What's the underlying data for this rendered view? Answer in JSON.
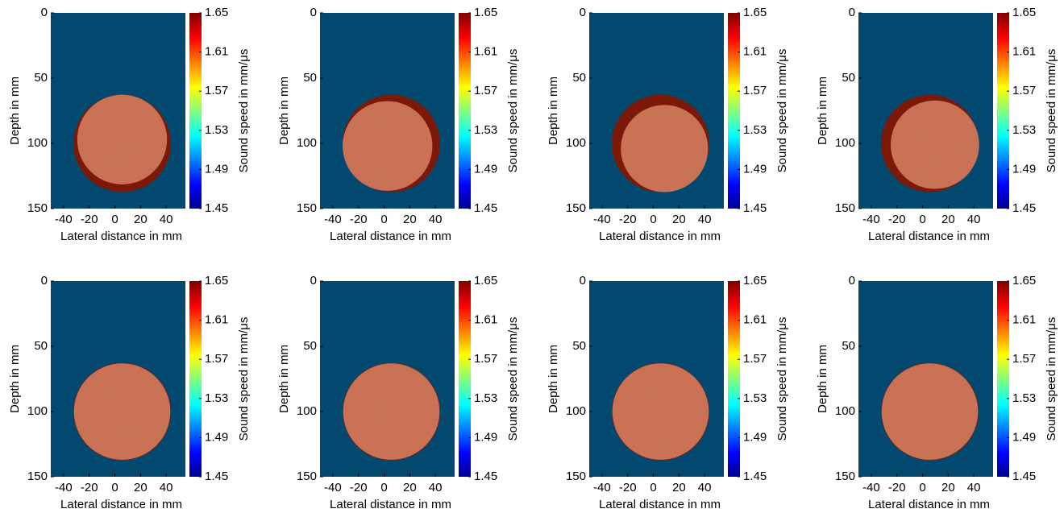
{
  "chart_data": [
    {
      "type": "image",
      "x_label": "Lateral distance in mm",
      "y_label": "Depth in mm",
      "xlim": [
        -50,
        55
      ],
      "ylim": [
        0,
        150
      ],
      "xticks": [
        -40,
        -20,
        0,
        20,
        40
      ],
      "yticks": [
        0,
        50,
        100,
        150
      ],
      "colorbar": {
        "label": "Sound speed in mm/μs",
        "lim": [
          1.45,
          1.65
        ],
        "ticks": [
          1.45,
          1.49,
          1.53,
          1.57,
          1.61,
          1.65
        ]
      }
    },
    {
      "type": "image",
      "x_label": "Lateral distance in mm",
      "y_label": "Depth in mm",
      "xlim": [
        -50,
        55
      ],
      "ylim": [
        0,
        150
      ],
      "xticks": [
        -40,
        -20,
        0,
        20,
        40
      ],
      "yticks": [
        0,
        50,
        100,
        150
      ],
      "colorbar": {
        "label": "Sound speed in mm/μs",
        "lim": [
          1.45,
          1.65
        ],
        "ticks": [
          1.45,
          1.49,
          1.53,
          1.57,
          1.61,
          1.65
        ]
      }
    },
    {
      "type": "image",
      "x_label": "Lateral distance in mm",
      "y_label": "Depth in mm",
      "xlim": [
        -50,
        55
      ],
      "ylim": [
        0,
        150
      ],
      "xticks": [
        -40,
        -20,
        0,
        20,
        40
      ],
      "yticks": [
        0,
        50,
        100,
        150
      ],
      "colorbar": {
        "label": "Sound speed in mm/μs",
        "lim": [
          1.45,
          1.65
        ],
        "ticks": [
          1.45,
          1.49,
          1.53,
          1.57,
          1.61,
          1.65
        ]
      }
    },
    {
      "type": "image",
      "x_label": "Lateral distance in mm",
      "y_label": "Depth in mm",
      "xlim": [
        -50,
        55
      ],
      "ylim": [
        0,
        150
      ],
      "xticks": [
        -40,
        -20,
        0,
        20,
        40
      ],
      "yticks": [
        0,
        50,
        100,
        150
      ],
      "colorbar": {
        "label": "Sound speed in mm/μs",
        "lim": [
          1.45,
          1.65
        ],
        "ticks": [
          1.45,
          1.49,
          1.53,
          1.57,
          1.61,
          1.65
        ]
      }
    },
    {
      "type": "image",
      "x_label": "Lateral distance in mm",
      "y_label": "Depth in mm",
      "xlim": [
        -50,
        55
      ],
      "ylim": [
        0,
        150
      ],
      "xticks": [
        -40,
        -20,
        0,
        20,
        40
      ],
      "yticks": [
        0,
        50,
        100,
        150
      ],
      "colorbar": {
        "label": "Sound speed in mm/μs",
        "lim": [
          1.45,
          1.65
        ],
        "ticks": [
          1.45,
          1.49,
          1.53,
          1.57,
          1.61,
          1.65
        ]
      }
    },
    {
      "type": "image",
      "x_label": "Lateral distance in mm",
      "y_label": "Depth in mm",
      "xlim": [
        -50,
        55
      ],
      "ylim": [
        0,
        150
      ],
      "xticks": [
        -40,
        -20,
        0,
        20,
        40
      ],
      "yticks": [
        0,
        50,
        100,
        150
      ],
      "colorbar": {
        "label": "Sound speed in mm/μs",
        "lim": [
          1.45,
          1.65
        ],
        "ticks": [
          1.45,
          1.49,
          1.53,
          1.57,
          1.61,
          1.65
        ]
      }
    },
    {
      "type": "image",
      "x_label": "Lateral distance in mm",
      "y_label": "Depth in mm",
      "xlim": [
        -50,
        55
      ],
      "ylim": [
        0,
        150
      ],
      "xticks": [
        -40,
        -20,
        0,
        20,
        40
      ],
      "yticks": [
        0,
        50,
        100,
        150
      ],
      "colorbar": {
        "label": "Sound speed in mm/μs",
        "lim": [
          1.45,
          1.65
        ],
        "ticks": [
          1.45,
          1.49,
          1.53,
          1.57,
          1.61,
          1.65
        ]
      }
    },
    {
      "type": "image",
      "x_label": "Lateral distance in mm",
      "y_label": "Depth in mm",
      "xlim": [
        -50,
        55
      ],
      "ylim": [
        0,
        150
      ],
      "xticks": [
        -40,
        -20,
        0,
        20,
        40
      ],
      "yticks": [
        0,
        50,
        100,
        150
      ],
      "colorbar": {
        "label": "Sound speed in mm/μs",
        "lim": [
          1.45,
          1.65
        ],
        "ticks": [
          1.45,
          1.49,
          1.53,
          1.57,
          1.61,
          1.65
        ]
      }
    }
  ]
}
